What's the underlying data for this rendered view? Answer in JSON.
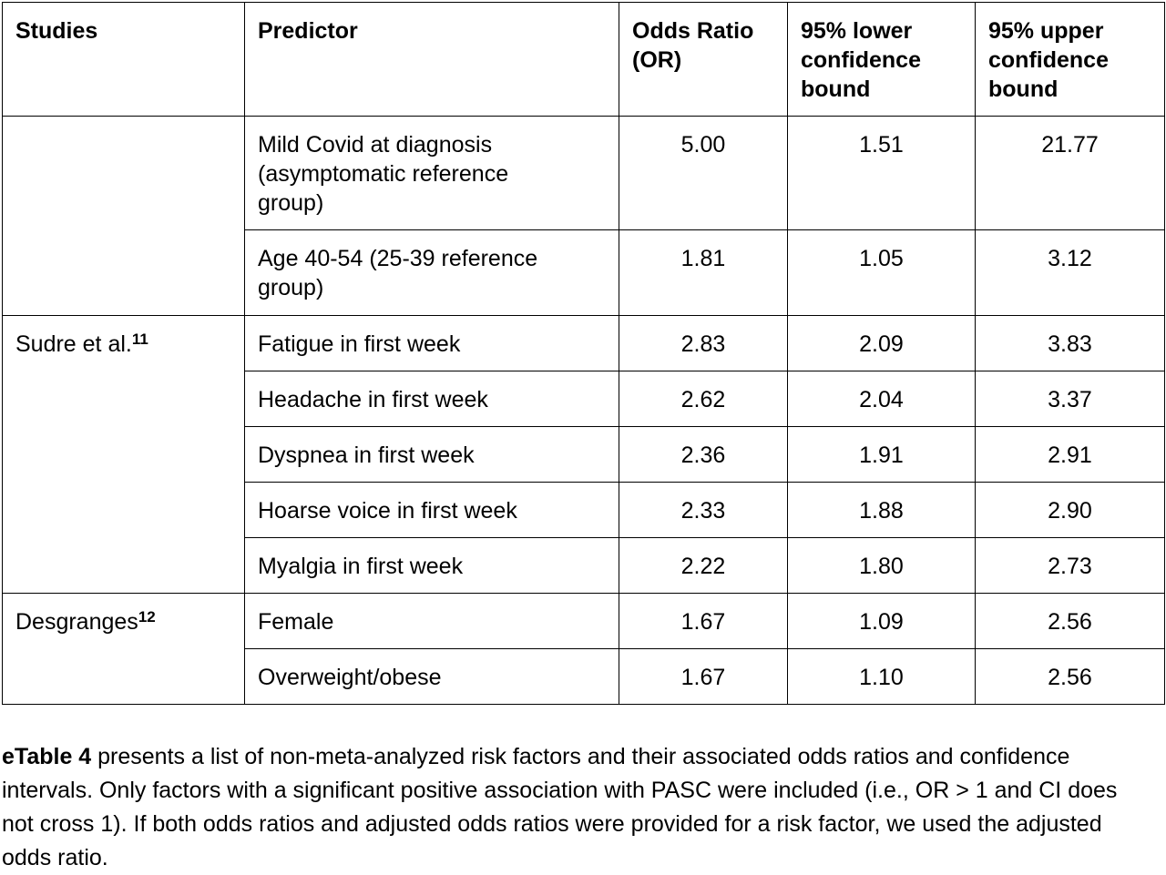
{
  "table": {
    "headers": {
      "studies": "Studies",
      "predictor": "Predictor",
      "or_line1": "Odds Ratio",
      "or_line2": "(OR)",
      "lower_line1": "95% lower",
      "lower_line2": "confidence",
      "lower_line3": "bound",
      "upper_line1": "95% upper",
      "upper_line2": "confidence",
      "upper_line3": "bound"
    },
    "rows": [
      {
        "predictor_l1": "Mild Covid at diagnosis",
        "predictor_l2": "(asymptomatic reference",
        "predictor_l3": "group)",
        "or": "5.00",
        "lower": "1.51",
        "upper": "21.77"
      },
      {
        "predictor_l1": "Age 40-54 (25-39 reference",
        "predictor_l2": "group)",
        "or": "1.81",
        "lower": "1.05",
        "upper": "3.12"
      },
      {
        "study": "Sudre et al.",
        "study_ref": "11",
        "predictor": "Fatigue in first week",
        "or": "2.83",
        "lower": "2.09",
        "upper": "3.83"
      },
      {
        "predictor": "Headache in first week",
        "or": "2.62",
        "lower": "2.04",
        "upper": "3.37"
      },
      {
        "predictor": "Dyspnea in first week",
        "or": "2.36",
        "lower": "1.91",
        "upper": "2.91"
      },
      {
        "predictor": "Hoarse voice in first week",
        "or": "2.33",
        "lower": "1.88",
        "upper": "2.90"
      },
      {
        "predictor": "Myalgia in first week",
        "or": "2.22",
        "lower": "1.80",
        "upper": "2.73"
      },
      {
        "study": "Desgranges",
        "study_ref": "12",
        "predictor": "Female",
        "or": "1.67",
        "lower": "1.09",
        "upper": "2.56"
      },
      {
        "predictor": "Overweight/obese",
        "or": "1.67",
        "lower": "1.10",
        "upper": "2.56"
      }
    ]
  },
  "caption": {
    "label": "eTable 4",
    "text": " presents a list of non-meta-analyzed risk factors and their associated odds ratios and confidence intervals.  Only factors with a significant positive association with PASC were included (i.e., OR > 1 and CI does not cross 1). If both odds ratios and adjusted odds ratios were provided for a risk factor, we used the adjusted odds ratio."
  }
}
